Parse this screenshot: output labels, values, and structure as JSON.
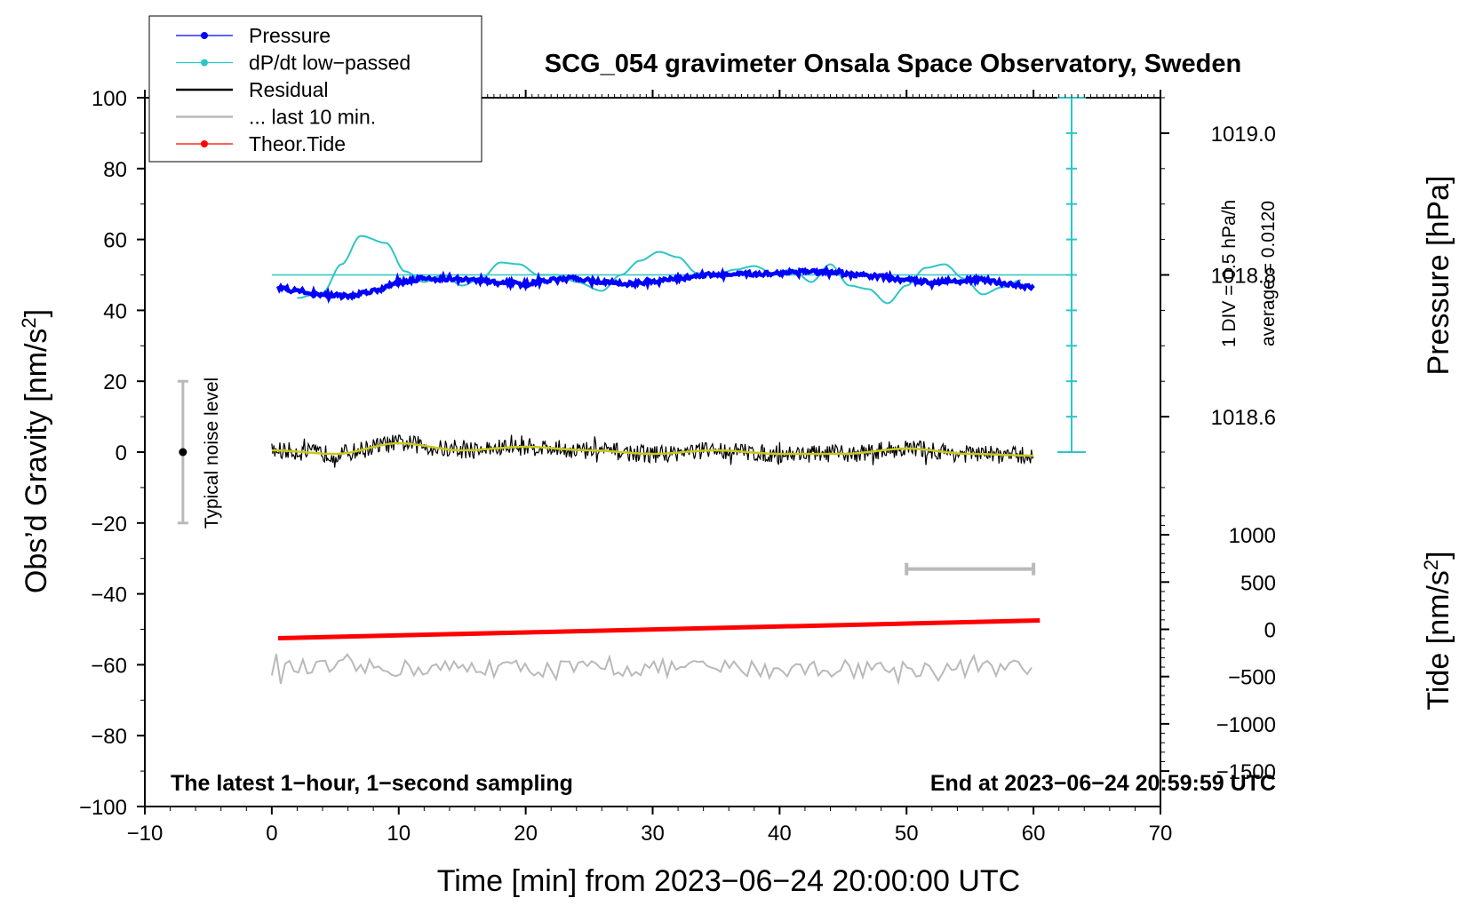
{
  "chart_data": {
    "type": "line",
    "title": "SCG_054 gravimeter Onsala Space Observatory, Sweden",
    "xlabel": "Time [min] from 2023−06−24 20:00:00 UTC",
    "ylabel_base": "Obs’d Gravity [nm/s",
    "ylabel_sup": "2",
    "ylabel_end": "]",
    "y2label": "Pressure [hPa]",
    "y3label_base": "Tide [nm/s",
    "y3label_sup": "2",
    "y3label_end": "]",
    "xlim": [
      -10,
      70
    ],
    "ylim": [
      -100,
      100
    ],
    "x_ticks": [
      "−10",
      "0",
      "10",
      "20",
      "30",
      "40",
      "50",
      "60",
      "70"
    ],
    "y_ticks": [
      "−100",
      "−80",
      "−60",
      "−40",
      "−20",
      "0",
      "20",
      "40",
      "60",
      "80",
      "100"
    ],
    "pressure_axis": {
      "ticks": [
        "1018.6",
        "1018.8",
        "1019.0"
      ],
      "values": [
        1018.6,
        1018.8,
        1019.0
      ],
      "unit_per_grav": 0.005,
      "ref_grav": 50,
      "ref_value": 1018.8
    },
    "tide_axis": {
      "ticks": [
        "1000",
        "500",
        "0",
        "−500",
        "−1000",
        "−1500"
      ],
      "values": [
        1000,
        500,
        0,
        -500,
        -1000,
        -1500
      ],
      "unit_per_grav": 37.5,
      "ref_grav": -50,
      "ref_value": 0
    },
    "legend": [
      {
        "label": "Pressure",
        "color": "#0000ff",
        "marker": true
      },
      {
        "label": "dP/dt low−passed",
        "color": "#2cc6c6",
        "marker": true
      },
      {
        "label": "Residual",
        "color": "#000000",
        "marker": false
      },
      {
        "label": "... last 10 min.",
        "color": "#b9b9b9",
        "marker": false
      },
      {
        "label": "Theor.Tide",
        "color": "#ff0000",
        "marker": true
      }
    ],
    "series": [
      {
        "name": "Pressure",
        "color": "#0000ff",
        "x": [
          0.5,
          2,
          4,
          6,
          8,
          10,
          12,
          14,
          16,
          18,
          20,
          22,
          24,
          26,
          28,
          30,
          32,
          34,
          36,
          38,
          40,
          42,
          44,
          46,
          48,
          50,
          52,
          54,
          56,
          58,
          60
        ],
        "y": [
          46.5,
          45.5,
          44.5,
          44,
          45.5,
          48,
          49,
          48.8,
          48.5,
          47.8,
          47.5,
          48.5,
          49,
          48,
          47.5,
          48,
          49,
          50,
          50,
          50.3,
          50.5,
          51,
          50.5,
          50,
          49.5,
          48.5,
          48,
          48.5,
          48.5,
          47.5,
          46.5
        ]
      },
      {
        "name": "dP/dt low-passed",
        "color": "#2cc6c6",
        "x": [
          2,
          4,
          5.5,
          7,
          9,
          10.5,
          12,
          13.5,
          15,
          16.5,
          18,
          19.5,
          21,
          22.5,
          24,
          26,
          27.5,
          29,
          30.5,
          32,
          33.5,
          35,
          36.5,
          38,
          39.5,
          41,
          42.5,
          44,
          45.5,
          47,
          48.5,
          50,
          51.5,
          53,
          54.5,
          56,
          57.5,
          59
        ],
        "y": [
          43.5,
          45,
          53,
          61,
          59,
          51,
          48,
          50,
          47,
          49,
          53.5,
          53,
          50,
          50,
          48,
          45.5,
          50,
          54,
          56.5,
          55,
          50.5,
          50,
          51.5,
          52.5,
          50.5,
          51.5,
          48,
          53,
          47,
          46,
          42,
          47,
          52,
          53,
          49,
          44.5,
          46.5,
          48.5
        ]
      },
      {
        "name": "Residual",
        "color": "#000000",
        "x": [
          0,
          60
        ],
        "y": [
          0,
          0
        ],
        "noise_amplitude": 2.5
      },
      {
        "name": "Residual low-passed",
        "color": "#c8c81e",
        "x": [
          0,
          5,
          10,
          15,
          20,
          25,
          30,
          35,
          40,
          45,
          50,
          55,
          60
        ],
        "y": [
          0.5,
          -0.5,
          2.5,
          0.5,
          1.5,
          0.5,
          -0.5,
          0.5,
          -0.5,
          -0.5,
          1,
          -0.5,
          -1
        ]
      },
      {
        "name": "Theor.Tide",
        "color": "#ff0000",
        "x": [
          0.5,
          60.5
        ],
        "y": [
          -52.5,
          -47.5
        ]
      },
      {
        "name": "... last 10 min.",
        "color": "#b9b9b9",
        "x": [
          0,
          60
        ],
        "y": [
          -61,
          -61
        ],
        "noise_amplitude": 2.5
      }
    ],
    "noise_bar": {
      "x": -7,
      "y_low": -20,
      "y_high": 20,
      "center": 0,
      "label": "Typical noise level"
    },
    "grey_range_bar": {
      "x_start": 50,
      "x_end": 60,
      "y": -33
    },
    "pressure_scale": {
      "label1": "1 DIV = 0.5 hPa/h",
      "label2": "average = 0.0120",
      "x": 63,
      "y_low": 0,
      "y_high": 100,
      "ref_y": 50
    },
    "notes": {
      "left": "The latest 1−hour, 1−second sampling",
      "right": "End at 2023−06−24 20:59:59 UTC"
    }
  }
}
